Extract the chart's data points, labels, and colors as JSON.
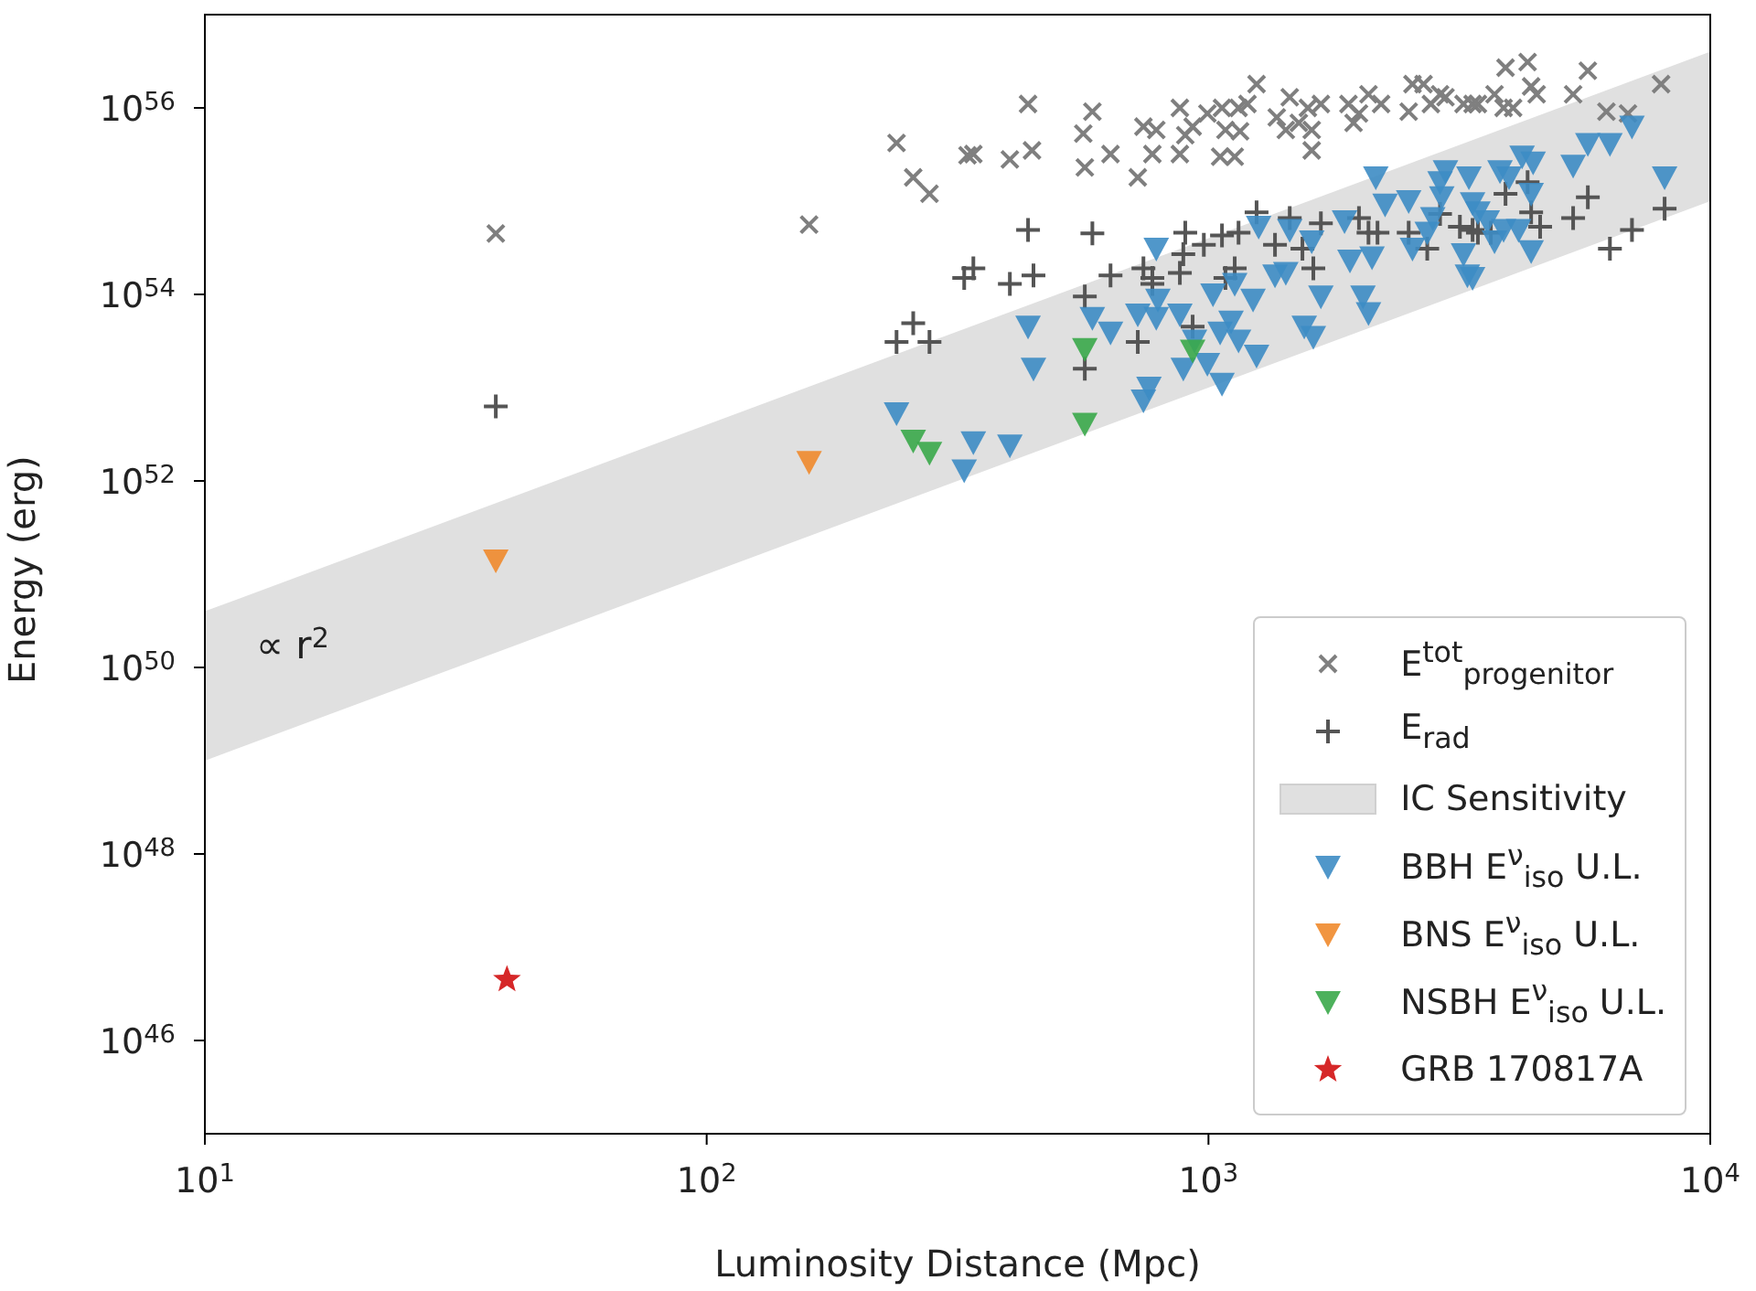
{
  "chart_data": {
    "type": "scatter",
    "xlabel": "Luminosity Distance (Mpc)",
    "ylabel": "Energy (erg)",
    "log": "xy",
    "legend": "bottom right",
    "xlim": [
      10,
      10000
    ],
    "ylim": [
      1e+45,
      1e+57
    ],
    "xticks": [
      {
        "value": 10,
        "label": "10$^{1}$"
      },
      {
        "value": 100,
        "label": "10$^{2}$"
      },
      {
        "value": 1000,
        "label": "10$^{3}$"
      },
      {
        "value": 10000,
        "label": "10$^{4}$"
      }
    ],
    "yticks": [
      {
        "value": 1e+46,
        "label": "10$^{46}$"
      },
      {
        "value": 1e+48,
        "label": "10$^{48}$"
      },
      {
        "value": 1e+50,
        "label": "10$^{50}$"
      },
      {
        "value": 1e+52,
        "label": "10$^{52}$"
      },
      {
        "value": 1e+54,
        "label": "10$^{54}$"
      },
      {
        "value": 1e+56,
        "label": "10$^{56}$"
      }
    ],
    "annotations": [
      "∝  r$^{2}$"
    ],
    "series": [
      {
        "name": "E$^{tot}$$_{progenitor}$",
        "marker": "x",
        "color": "#7f7f7f",
        "x": [
          38,
          160,
          239,
          258,
          278,
          331,
          340,
          402,
          437,
          445,
          563,
          587,
          567,
          638,
          723,
          742,
          787,
          773,
          877,
          899,
          930,
          877,
          995,
          1064,
          1148,
          1196,
          1247,
          1081,
          1156,
          1055,
          1128,
          1452,
          1578,
          1675,
          1368,
          1426,
          1514,
          1606,
          1606,
          1901,
          1995,
          2084,
          2208,
          1946,
          2506,
          2550,
          2683,
          2775,
          2894,
          2967,
          3223,
          3360,
          3443,
          3716,
          3874,
          4046,
          3908,
          4325,
          4396,
          4508,
          5330,
          5702,
          6209,
          7980,
          6855
        ],
        "values": [
          4.5e+54,
          5.6e+54,
          4.2e+55,
          1.8e+55,
          1.2e+55,
          3.1e+55,
          3.2e+55,
          2.8e+55,
          1.1e+56,
          3.5e+55,
          5.3e+55,
          9.1e+55,
          2.3e+55,
          3.2e+55,
          1.8e+55,
          6.3e+55,
          5.8e+55,
          3.2e+55,
          1e+56,
          5.1e+55,
          6.3e+55,
          3.2e+55,
          8.7e+55,
          1e+56,
          1e+56,
          1.1e+56,
          1.8e+56,
          5.8e+55,
          5.6e+55,
          3e+55,
          3e+55,
          1.3e+56,
          1e+56,
          1.1e+56,
          7.9e+55,
          5.8e+55,
          6.9e+55,
          5.8e+55,
          3.5e+55,
          1.1e+56,
          8.7e+55,
          1.4e+56,
          1.1e+56,
          6.9e+55,
          9.1e+55,
          1.8e+56,
          1.8e+56,
          1.1e+56,
          1.4e+56,
          1.3e+56,
          1.1e+56,
          1.1e+56,
          1.1e+56,
          1.4e+56,
          1e+56,
          1e+56,
          2.7e+56,
          3.1e+56,
          1.7e+56,
          1.4e+56,
          1.4e+56,
          2.5e+56,
          9.1e+55,
          1.8e+56,
          8.7e+55
        ]
      },
      {
        "name": "E$_{rad}$",
        "marker": "cross",
        "color": "#555555",
        "x": [
          38,
          437,
          587,
          326,
          340,
          402,
          448,
          239,
          258,
          278,
          567,
          638,
          723,
          567,
          742,
          773,
          773,
          899,
          891,
          877,
          930,
          979,
          1064,
          1148,
          1247,
          1128,
          1081,
          1357,
          1452,
          1539,
          1618,
          1675,
          1995,
          2084,
          2172,
          2506,
          2729,
          2894,
          3170,
          3360,
          3443,
          3654,
          4325,
          4396,
          4581,
          3908,
          5330,
          5702,
          6310,
          6982,
          8110
        ],
        "values": [
          6.3e+52,
          4.9e+54,
          4.5e+54,
          1.5e+54,
          1.9e+54,
          1.3e+54,
          1.6e+54,
          3.1e+53,
          4.9e+53,
          3.1e+53,
          9.5e+53,
          1.6e+54,
          3.1e+53,
          1.6e+53,
          1.9e+54,
          1.5e+54,
          1.3e+54,
          4.6e+54,
          2.7e+54,
          1.7e+54,
          4.5e+53,
          3.4e+54,
          4.3e+54,
          4.6e+54,
          7.6e+54,
          1.9e+54,
          1.5e+54,
          3.4e+54,
          6.6e+54,
          3.1e+54,
          1.9e+54,
          5.8e+54,
          6.6e+54,
          4.6e+54,
          4.6e+54,
          4.6e+54,
          3.1e+54,
          7.3e+54,
          5.3e+54,
          4.9e+54,
          4.6e+54,
          4.6e+54,
          1.6e+55,
          7.6e+54,
          5.3e+54,
          1.2e+55,
          6.6e+54,
          1.1e+55,
          3.1e+54,
          4.9e+54,
          8.3e+54
        ]
      },
      {
        "name": "IC Sensitivity",
        "type": "area",
        "color": "#e0e0e0",
        "x": [
          10,
          10000
        ],
        "values": [
          null,
          null
        ],
        "lower": [
          1e+49,
          1e+55
        ],
        "upper": [
          4e+50,
          4e+56
        ]
      },
      {
        "name": "BBH E$^{ν}$$_{iso}$ U.L.",
        "marker": "triangle_down",
        "color": "#3d8cc4",
        "x": [
          437,
          448,
          587,
          638,
          239,
          326,
          340,
          402,
          742,
          761,
          787,
          723,
          787,
          793,
          877,
          891,
          938,
          995,
          1055,
          1064,
          1021,
          1128,
          1109,
          1148,
          1247,
          1227,
          1259,
          1357,
          1426,
          1452,
          1552,
          1618,
          1606,
          1675,
          1867,
          1914,
          2032,
          2084,
          2118,
          2249,
          2155,
          2506,
          2550,
          2729,
          2799,
          2894,
          2917,
          2967,
          3223,
          3281,
          3360,
          3304,
          3360,
          3443,
          3594,
          3716,
          3874,
          3810,
          3972,
          4217,
          4436,
          4396,
          4396,
          4150,
          5330,
          5702,
          6310,
          6982,
          8110
        ],
        "values": [
          4.5e+53,
          1.6e+53,
          5.6e+53,
          3.9e+53,
          5.3e+52,
          1.3e+52,
          2.6e+52,
          2.4e+52,
          7.3e+52,
          1e+53,
          3.1e+54,
          6.1e+53,
          5.6e+53,
          8.8e+53,
          6.1e+53,
          1.6e+53,
          3.2e+53,
          1.8e+53,
          3.9e+53,
          1.1e+53,
          1e+54,
          1.3e+54,
          5.1e+53,
          3.2e+53,
          2.2e+53,
          8.8e+53,
          5.3e+54,
          1.6e+54,
          1.7e+54,
          4.9e+54,
          4.5e+53,
          3.5e+53,
          3.7e+54,
          9.5e+53,
          6.1e+54,
          2.3e+54,
          9.5e+53,
          6.3e+53,
          2.5e+54,
          9.2e+54,
          1.8e+55,
          1e+55,
          3.1e+54,
          4.6e+54,
          6.6e+54,
          1.6e+55,
          1.1e+55,
          2.1e+55,
          2.7e+54,
          1.6e+54,
          1.5e+54,
          1.8e+55,
          9.5e+54,
          7.6e+54,
          6.1e+54,
          3.7e+54,
          4.9e+54,
          2.1e+55,
          1.8e+55,
          3e+55,
          2.6e+55,
          1.2e+55,
          2.9e+54,
          4.9e+54,
          2.4e+55,
          4.1e+55,
          4.1e+55,
          6.3e+55,
          1.8e+55
        ]
      },
      {
        "name": "BNS E$^{ν}$$_{iso}$ U.L.",
        "marker": "triangle_down",
        "color": "#f08a2c",
        "x": [
          38,
          160
        ],
        "values": [
          1.4e+51,
          1.6e+52
        ]
      },
      {
        "name": "NSBH E$^{ν}$$_{iso}$ U.L.",
        "marker": "triangle_down",
        "color": "#3aa84a",
        "x": [
          567,
          567,
          258,
          278,
          930
        ],
        "values": [
          2.6e+53,
          4.1e+52,
          2.7e+52,
          2e+52,
          2.5e+53
        ]
      },
      {
        "name": "GRB 170817A",
        "marker": "star",
        "color": "#d62728",
        "x": [
          40
        ],
        "values": [
          4.5e+46
        ]
      }
    ]
  }
}
